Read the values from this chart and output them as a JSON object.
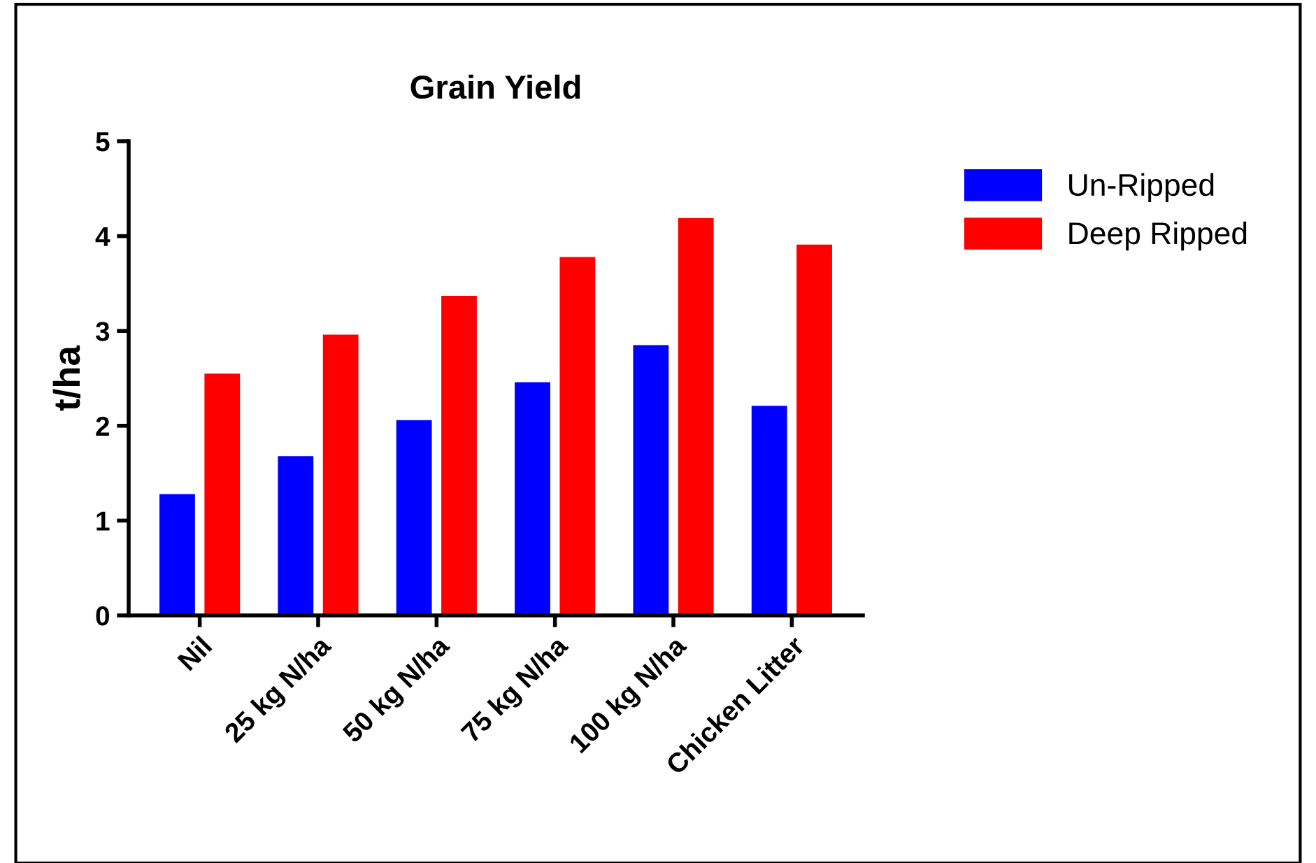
{
  "chart_data": {
    "type": "bar",
    "title": "Grain Yield",
    "ylabel": "t/ha",
    "categories": [
      "Nil",
      "25 kg N/ha",
      "50 kg N/ha",
      "75 kg N/ha",
      "100 kg N/ha",
      "Chicken Litter"
    ],
    "series": [
      {
        "name": "Un-Ripped",
        "color": "#0000ff",
        "values": [
          1.28,
          1.68,
          2.06,
          2.46,
          2.85,
          2.21
        ]
      },
      {
        "name": "Deep Ripped",
        "color": "#ff0000",
        "values": [
          2.55,
          2.96,
          3.37,
          3.78,
          4.19,
          3.91
        ]
      }
    ],
    "ylim": [
      0,
      5
    ],
    "yticks": [
      0,
      1,
      2,
      3,
      4,
      5
    ],
    "grid": false,
    "legend": "top right"
  }
}
